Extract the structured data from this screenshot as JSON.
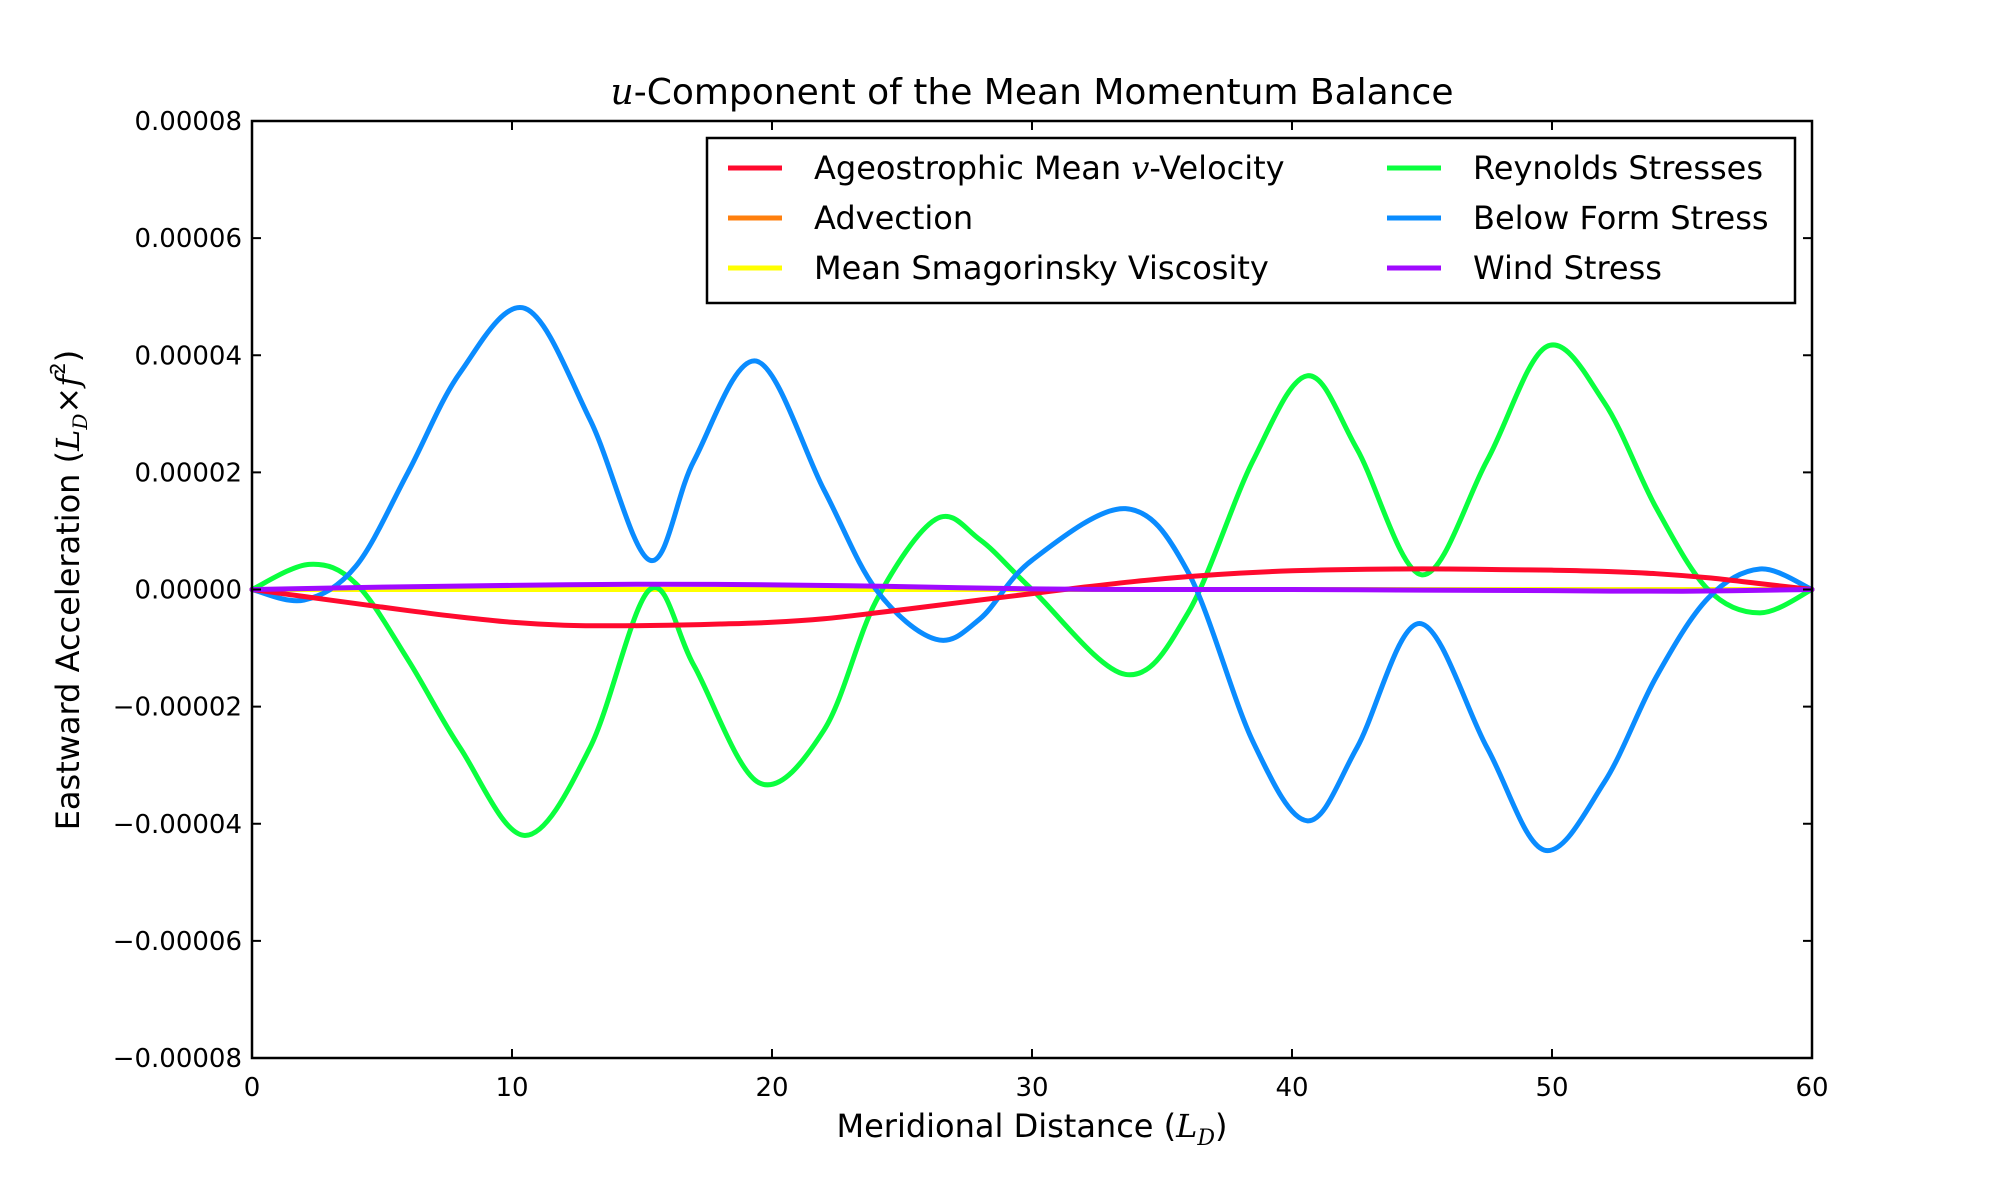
{
  "chart_data": {
    "type": "line",
    "title_prefix": "u",
    "title_rest": "-Component of the Mean Momentum Balance",
    "xlabel_text": "Meridional Distance (",
    "xlabel_math": "L",
    "xlabel_sub": "D",
    "xlabel_close": ")",
    "ylabel_text": "Eastward Acceleration (",
    "ylabel_math_l": "L",
    "ylabel_math_d": "D",
    "ylabel_times": "×",
    "ylabel_f": "f",
    "ylabel_sup": "2",
    "ylabel_close": ")",
    "xlim": [
      0,
      60
    ],
    "ylim": [
      -8e-05,
      8e-05
    ],
    "xticks": [
      0,
      10,
      20,
      30,
      40,
      50,
      60
    ],
    "xtick_labels": [
      "0",
      "10",
      "20",
      "30",
      "40",
      "50",
      "60"
    ],
    "yticks": [
      -8e-05,
      -6e-05,
      -4e-05,
      -2e-05,
      0,
      2e-05,
      4e-05,
      6e-05,
      8e-05
    ],
    "ytick_labels": [
      "−0.00008",
      "−0.00006",
      "−0.00004",
      "−0.00002",
      "0.00000",
      "0.00002",
      "0.00004",
      "0.00006",
      "0.00008"
    ],
    "grid": false,
    "legend_position": "top-right",
    "legend_columns": 2,
    "series": [
      {
        "name": "Ageostrophic Mean v-Velocity",
        "name_pre": "Ageostrophic Mean ",
        "name_math": "v",
        "name_post": "-Velocity",
        "color": "#ff0a2e",
        "x": [
          0,
          2,
          4,
          6,
          8,
          10,
          12,
          14,
          16,
          18,
          20,
          22,
          24,
          26,
          28,
          30,
          32,
          34,
          36,
          38,
          40,
          42,
          44,
          46,
          48,
          50,
          52,
          54,
          56,
          58,
          60
        ],
        "y": [
          0,
          -1.2e-06,
          -2.4e-06,
          -3.6e-06,
          -4.7e-06,
          -5.6e-06,
          -6.1e-06,
          -6.2e-06,
          -6.1e-06,
          -5.9e-06,
          -5.6e-06,
          -5e-06,
          -4e-06,
          -2.9e-06,
          -1.8e-06,
          -7e-07,
          4e-07,
          1.4e-06,
          2.2e-06,
          2.8e-06,
          3.2e-06,
          3.4e-06,
          3.5e-06,
          3.5e-06,
          3.4e-06,
          3.3e-06,
          3.1e-06,
          2.7e-06,
          2e-06,
          1e-06,
          0
        ]
      },
      {
        "name": "Advection",
        "color": "#ff7f0e",
        "x": [
          0,
          10,
          20,
          30,
          40,
          50,
          60
        ],
        "y": [
          0,
          0,
          0,
          0,
          0,
          0,
          0
        ]
      },
      {
        "name": "Mean Smagorinsky Viscosity",
        "color": "#ffff00",
        "x": [
          0,
          10,
          20,
          30,
          40,
          50,
          60
        ],
        "y": [
          0,
          0,
          0,
          0,
          0,
          0,
          0
        ]
      },
      {
        "name": "Reynolds Stresses",
        "color": "#0aff3e",
        "x": [
          0,
          2.2,
          4,
          6,
          8,
          10.5,
          13,
          15.3,
          17,
          19.5,
          22,
          24,
          26.3,
          28,
          30,
          33.6,
          36,
          38.5,
          40.6,
          42.5,
          45,
          47.5,
          49.8,
          52,
          54,
          56,
          58,
          60
        ],
        "y": [
          0,
          4.3e-06,
          1e-06,
          -1.2e-05,
          -2.7e-05,
          -4.2e-05,
          -2.7e-05,
          0,
          -1.3e-05,
          -3.3e-05,
          -2.4e-05,
          -2e-06,
          1.2e-05,
          8.5e-06,
          0,
          -1.45e-05,
          -4e-06,
          2.2e-05,
          3.65e-05,
          2.4e-05,
          2.5e-06,
          2.2e-05,
          4.15e-05,
          3.2e-05,
          1.4e-05,
          0,
          -4e-06,
          0
        ]
      },
      {
        "name": "Below Form Stress",
        "color": "#0a8cff",
        "x": [
          0,
          2,
          4,
          6,
          8,
          10.5,
          13,
          15.3,
          17,
          19.4,
          22,
          24,
          26.3,
          28,
          30,
          33.6,
          36,
          38.5,
          40.6,
          42.5,
          44.9,
          47.5,
          49.7,
          52,
          54,
          56,
          58,
          60
        ],
        "y": [
          0,
          -1.8e-06,
          4e-06,
          2e-05,
          3.7e-05,
          4.8e-05,
          2.9e-05,
          5e-06,
          2.2e-05,
          3.9e-05,
          1.7e-05,
          0,
          -8.5e-06,
          -5e-06,
          5e-06,
          1.38e-05,
          3e-06,
          -2.6e-05,
          -3.95e-05,
          -2.7e-05,
          -5.8e-06,
          -2.7e-05,
          -4.45e-05,
          -3.3e-05,
          -1.5e-05,
          -1.5e-06,
          3.5e-06,
          0
        ]
      },
      {
        "name": "Wind Stress",
        "color": "#a00aff",
        "x": [
          0,
          5,
          10,
          15,
          20,
          25,
          30,
          35,
          40,
          45,
          50,
          55,
          60
        ],
        "y": [
          0,
          4e-07,
          7e-07,
          9e-07,
          8e-07,
          5e-07,
          1e-07,
          0,
          0,
          -1e-07,
          -2e-07,
          -3e-07,
          0
        ]
      }
    ]
  }
}
